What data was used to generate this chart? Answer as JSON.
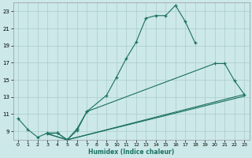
{
  "xlabel": "Humidex (Indice chaleur)",
  "bg_color": "#cce8e8",
  "grid_color": "#aacccc",
  "line_color": "#1a7060",
  "xlim": [
    -0.5,
    23.5
  ],
  "ylim": [
    8,
    24
  ],
  "xticks": [
    0,
    1,
    2,
    3,
    4,
    5,
    6,
    7,
    8,
    9,
    10,
    11,
    12,
    13,
    14,
    15,
    16,
    17,
    18,
    19,
    20,
    21,
    22,
    23
  ],
  "yticks": [
    9,
    11,
    13,
    15,
    17,
    19,
    21,
    23
  ],
  "ytick_labels": [
    "9",
    "11",
    "13",
    "15",
    "17",
    "19",
    "21",
    "23"
  ],
  "line1": {
    "x": [
      0,
      1,
      2,
      3,
      4,
      5,
      6,
      7,
      9,
      10,
      11,
      12,
      13,
      14,
      15,
      16,
      17,
      18
    ],
    "y": [
      10.5,
      9.2,
      8.3,
      8.8,
      8.8,
      8.0,
      9.1,
      11.3,
      13.2,
      15.3,
      17.5,
      19.4,
      22.2,
      22.5,
      22.5,
      23.7,
      21.8,
      19.3
    ]
  },
  "line2": {
    "x": [
      3,
      4,
      5,
      6,
      7,
      20,
      21,
      22,
      23
    ],
    "y": [
      8.7,
      8.8,
      8.0,
      9.3,
      11.3,
      16.9,
      16.9,
      14.9,
      13.3
    ]
  },
  "line3": {
    "x": [
      3,
      5,
      23
    ],
    "y": [
      8.7,
      8.0,
      13.3
    ]
  },
  "line4": {
    "x": [
      3,
      5,
      23
    ],
    "y": [
      8.7,
      8.0,
      13.1
    ]
  }
}
